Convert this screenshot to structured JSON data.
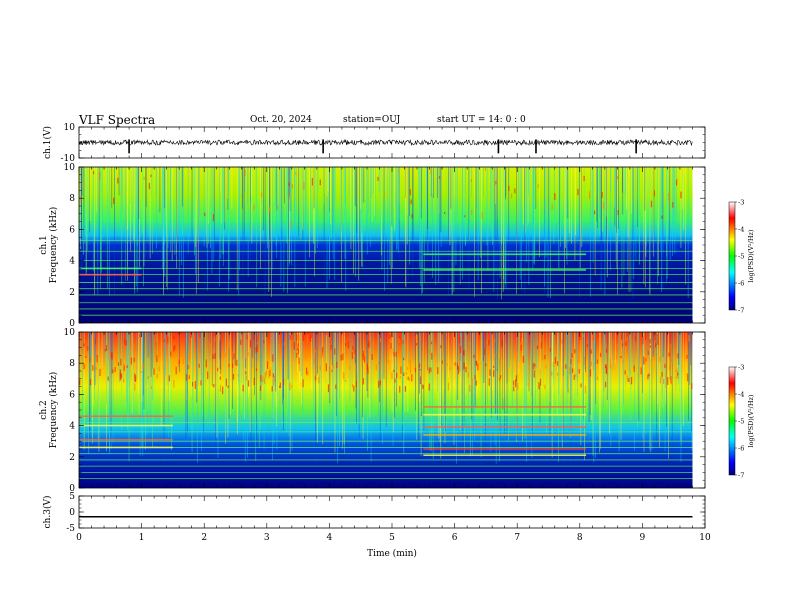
{
  "header": {
    "title": "VLF Spectra",
    "date": "Oct. 20, 2024",
    "station": "station=OUJ",
    "start": "start  UT =  14: 0  : 0"
  },
  "chart_data": [
    {
      "type": "line",
      "panel": "ch1-waveform",
      "ylabel": "ch.1(V)",
      "ylim": [
        -10,
        10
      ],
      "yticks": [
        "10",
        "-10"
      ],
      "x": [
        0,
        1,
        2,
        3,
        4,
        5,
        6,
        7,
        8,
        9,
        9.8
      ],
      "values": [
        0,
        0,
        0,
        0,
        0,
        0,
        0,
        0,
        0,
        0,
        0
      ],
      "spikes_min": [
        0.8,
        3.9,
        6.7,
        7.3,
        8.9
      ],
      "color": "#000000"
    },
    {
      "type": "heatmap",
      "panel": "ch1-spectrogram",
      "ylabel": "ch.1\nFrequency (kHz)",
      "ylim": [
        0,
        10
      ],
      "yticks": [
        "0",
        "2",
        "4",
        "6",
        "8",
        "10"
      ],
      "xlim": [
        0,
        10
      ],
      "colorbar": {
        "label": "log(PSD)(V²/Hz)",
        "range": [
          -7,
          -3
        ],
        "ticks": [
          "-3",
          "-4",
          "-5",
          "-6",
          "-7"
        ]
      }
    },
    {
      "type": "heatmap",
      "panel": "ch2-spectrogram",
      "ylabel": "ch.2\nFrequency (kHz)",
      "ylim": [
        0,
        10
      ],
      "yticks": [
        "0",
        "2",
        "4",
        "6",
        "8",
        "10"
      ],
      "xlim": [
        0,
        10
      ],
      "colorbar": {
        "label": "log(PSD)(V²/Hz)",
        "range": [
          -7,
          -3
        ],
        "ticks": [
          "-3",
          "-4",
          "-5",
          "-6",
          "-7"
        ]
      }
    },
    {
      "type": "line",
      "panel": "ch3-waveform",
      "ylabel": "ch.3(V)",
      "ylim": [
        -5,
        5
      ],
      "yticks": [
        "5",
        "0",
        "-5"
      ],
      "x": [
        0,
        9.8
      ],
      "values": [
        -1.5,
        -1.5
      ],
      "color": "#000000"
    }
  ],
  "xaxis": {
    "label": "Time (min)",
    "range": [
      0,
      10
    ],
    "ticks": [
      "0",
      "1",
      "2",
      "3",
      "4",
      "5",
      "6",
      "7",
      "8",
      "9",
      "10"
    ]
  }
}
